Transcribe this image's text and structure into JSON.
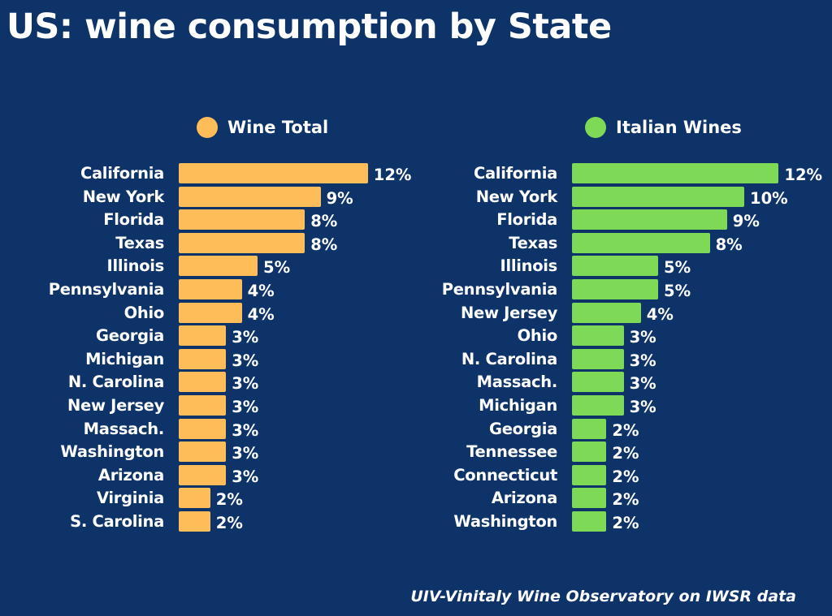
{
  "title": "US: wine consumption by State",
  "source": "UIV-Vinitaly Wine Observatory on IWSR data",
  "chart_data": [
    {
      "type": "bar",
      "orientation": "horizontal",
      "legend": "Wine Total",
      "color": "#ffbd59",
      "unit": "%",
      "categories": [
        "California",
        "New York",
        "Florida",
        "Texas",
        "Illinois",
        "Pennsylvania",
        "Ohio",
        "Georgia",
        "Michigan",
        "N. Carolina",
        "New Jersey",
        "Massach.",
        "Washington",
        "Arizona",
        "Virginia",
        "S. Carolina"
      ],
      "values": [
        12,
        9,
        8,
        8,
        5,
        4,
        4,
        3,
        3,
        3,
        3,
        3,
        3,
        3,
        2,
        2
      ],
      "labels": [
        "12%",
        "9%",
        "8%",
        "8%",
        "5%",
        "4%",
        "4%",
        "3%",
        "3%",
        "3%",
        "3%",
        "3%",
        "3%",
        "3%",
        "2%",
        "2%"
      ]
    },
    {
      "type": "bar",
      "orientation": "horizontal",
      "legend": "Italian Wines",
      "color": "#7ed957",
      "unit": "%",
      "categories": [
        "California",
        "New York",
        "Florida",
        "Texas",
        "Illinois",
        "Pennsylvania",
        "New Jersey",
        "Ohio",
        "N. Carolina",
        "Massach.",
        "Michigan",
        "Georgia",
        "Tennessee",
        "Connecticut",
        "Arizona",
        "Washington"
      ],
      "values": [
        12,
        10,
        9,
        8,
        5,
        5,
        4,
        3,
        3,
        3,
        3,
        2,
        2,
        2,
        2,
        2
      ],
      "labels": [
        "12%",
        "10%",
        "9%",
        "8%",
        "5%",
        "5%",
        "4%",
        "3%",
        "3%",
        "3%",
        "3%",
        "2%",
        "2%",
        "2%",
        "2%",
        "2%"
      ]
    }
  ]
}
